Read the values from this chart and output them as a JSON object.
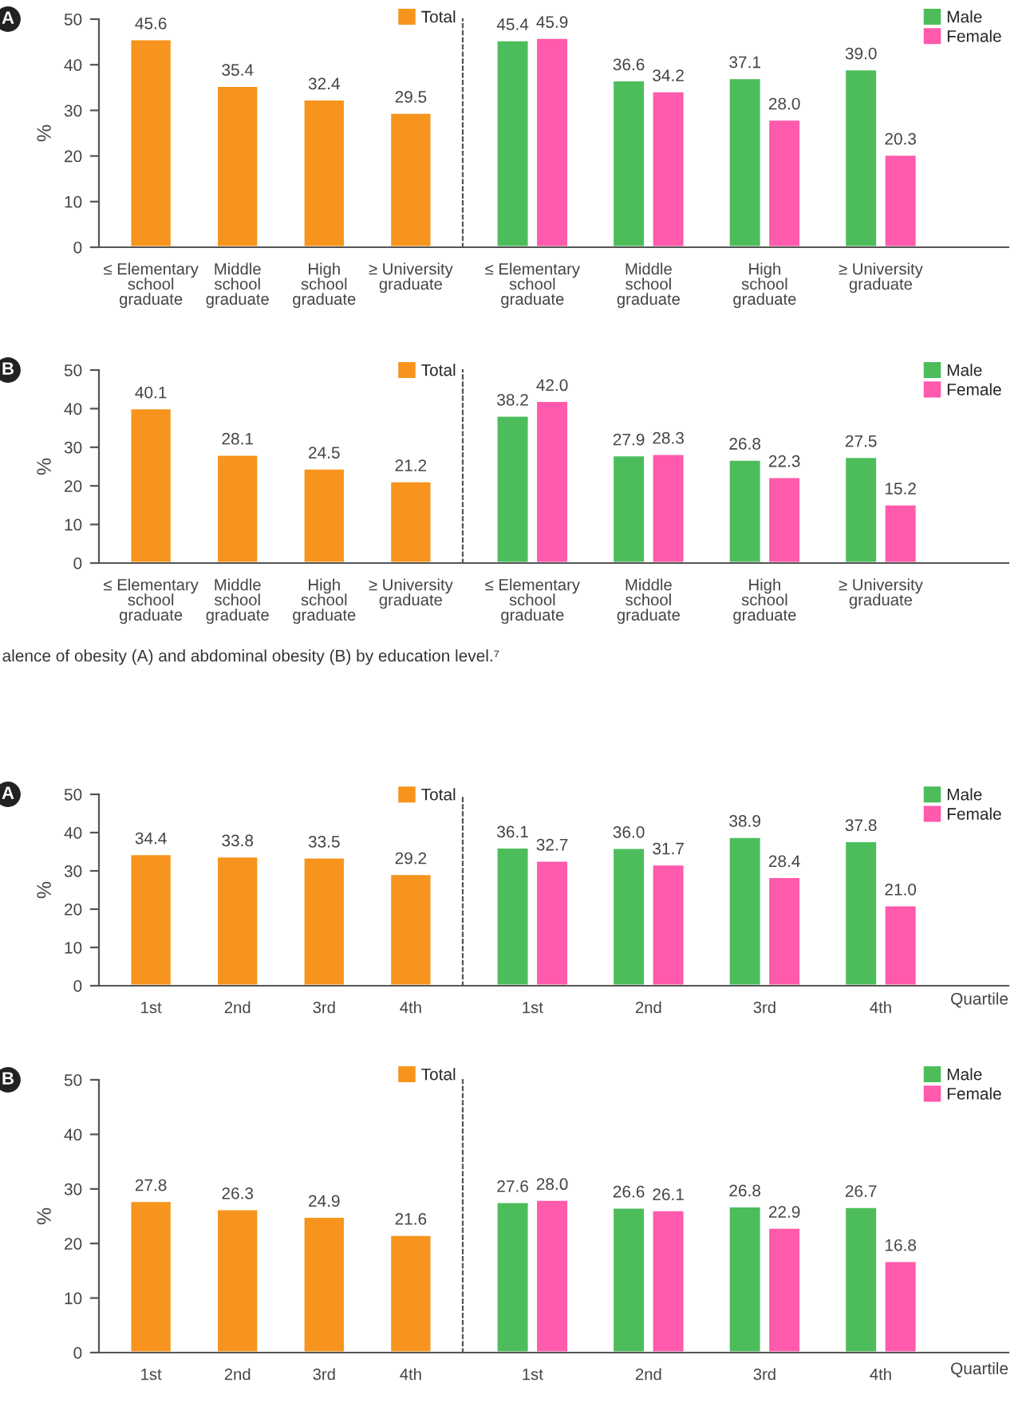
{
  "chart_data": [
    {
      "type": "bar",
      "title": "A",
      "ylabel": "%",
      "categories": [
        "≤ Elementary\nschool\ngraduate",
        "Middle\nschool\ngraduate",
        "High\nschool\ngraduate",
        "≥ University\ngraduate"
      ],
      "series": [
        {
          "name": "Total",
          "color": "#f7941d",
          "values": [
            45.6,
            35.4,
            32.4,
            29.5
          ],
          "value_labels": [
            "45.6",
            "35.4",
            "32.4",
            "29.5"
          ]
        }
      ],
      "ylim": [
        0,
        50
      ],
      "yticks": [
        0,
        10,
        20,
        30,
        40,
        50
      ],
      "legend": "top right",
      "grid": false
    },
    {
      "type": "bar",
      "categories": [
        "≤ Elementary\nschool\ngraduate",
        "Middle\nschool\ngraduate",
        "High\nschool\ngraduate",
        "≥ University\ngraduate"
      ],
      "series": [
        {
          "name": "Male",
          "color": "#4dbd5c",
          "values": [
            45.4,
            36.6,
            37.1,
            39.0
          ],
          "value_labels": [
            "45.4",
            "36.6",
            "37.1",
            "39.0"
          ]
        },
        {
          "name": "Female",
          "color": "#ff5aab",
          "values": [
            45.9,
            34.2,
            28.0,
            20.3
          ],
          "value_labels": [
            "45.9",
            "34.2",
            "28.0",
            "20.3"
          ]
        }
      ],
      "ylim": [
        0,
        50
      ],
      "tick_labels": "x",
      "legend": "top right",
      "grid": false
    },
    {
      "type": "bar",
      "title": "B",
      "ylabel": "%",
      "categories": [
        "≤ Elementary\nschool\ngraduate",
        "Middle\nschool\ngraduate",
        "High\nschool\ngraduate",
        "≥ University\ngraduate"
      ],
      "series": [
        {
          "name": "Total",
          "color": "#f7941d",
          "values": [
            40.1,
            28.1,
            24.5,
            21.2
          ],
          "value_labels": [
            "40.1",
            "28.1",
            "24.5",
            "21.2"
          ]
        }
      ],
      "ylim": [
        0,
        50
      ],
      "yticks": [
        0,
        10,
        20,
        30,
        40,
        50
      ],
      "legend": "top right",
      "grid": false,
      "annotations": [
        "alence of obesity (A) and abdominal obesity (B) by education level.⁷"
      ]
    },
    {
      "type": "bar",
      "categories": [
        "≤ Elementary\nschool\ngraduate",
        "Middle\nschool\ngraduate",
        "High\nschool\ngraduate",
        "≥ University\ngraduate"
      ],
      "series": [
        {
          "name": "Male",
          "color": "#4dbd5c",
          "values": [
            38.2,
            27.9,
            26.8,
            27.5
          ],
          "value_labels": [
            "38.2",
            "27.9",
            "26.8",
            "27.5"
          ]
        },
        {
          "name": "Female",
          "color": "#ff5aab",
          "values": [
            42.0,
            28.3,
            22.3,
            15.2
          ],
          "value_labels": [
            "42.0",
            "28.3",
            "22.3",
            "15.2"
          ]
        }
      ],
      "ylim": [
        0,
        50
      ],
      "tick_labels": "x",
      "legend": "top right",
      "grid": false
    },
    {
      "type": "bar",
      "title": "A",
      "ylabel": "%",
      "categories": [
        "1st",
        "2nd",
        "3rd",
        "4th"
      ],
      "series": [
        {
          "name": "Total",
          "color": "#f7941d",
          "values": [
            34.4,
            33.8,
            33.5,
            29.2
          ],
          "value_labels": [
            "34.4",
            "33.8",
            "33.5",
            "29.2"
          ]
        }
      ],
      "ylim": [
        0,
        50
      ],
      "yticks": [
        0,
        10,
        20,
        30,
        40,
        50
      ],
      "legend": "top right",
      "grid": false
    },
    {
      "type": "bar",
      "xlabel": "Quartile",
      "categories": [
        "1st",
        "2nd",
        "3rd",
        "4th"
      ],
      "series": [
        {
          "name": "Male",
          "color": "#4dbd5c",
          "values": [
            36.1,
            36.0,
            38.9,
            37.8
          ],
          "value_labels": [
            "36.1",
            "36.0",
            "38.9",
            "37.8"
          ]
        },
        {
          "name": "Female",
          "color": "#ff5aab",
          "values": [
            32.7,
            31.7,
            28.4,
            21.0
          ],
          "value_labels": [
            "32.7",
            "31.7",
            "28.4",
            "21.0"
          ]
        }
      ],
      "ylim": [
        0,
        50
      ],
      "tick_labels": "x",
      "legend": "top right",
      "grid": false
    },
    {
      "type": "bar",
      "title": "B",
      "ylabel": "%",
      "categories": [
        "1st",
        "2nd",
        "3rd",
        "4th"
      ],
      "series": [
        {
          "name": "Total",
          "color": "#f7941d",
          "values": [
            27.8,
            26.3,
            24.9,
            21.6
          ],
          "value_labels": [
            "27.8",
            "26.3",
            "24.9",
            "21.6"
          ]
        }
      ],
      "ylim": [
        0,
        50
      ],
      "yticks": [
        0,
        10,
        20,
        30,
        40,
        50
      ],
      "legend": "top right",
      "grid": false
    },
    {
      "type": "bar",
      "xlabel": "Quartile",
      "categories": [
        "1st",
        "2nd",
        "3rd",
        "4th"
      ],
      "series": [
        {
          "name": "Male",
          "color": "#4dbd5c",
          "values": [
            27.6,
            26.6,
            26.8,
            26.7
          ],
          "value_labels": [
            "27.6",
            "26.6",
            "26.8",
            "26.7"
          ]
        },
        {
          "name": "Female",
          "color": "#ff5aab",
          "values": [
            28.0,
            26.1,
            22.9,
            16.8
          ],
          "value_labels": [
            "28.0",
            "26.1",
            "22.9",
            "16.8"
          ]
        }
      ],
      "ylim": [
        0,
        50
      ],
      "tick_labels": "x",
      "legend": "top right",
      "grid": false
    }
  ]
}
